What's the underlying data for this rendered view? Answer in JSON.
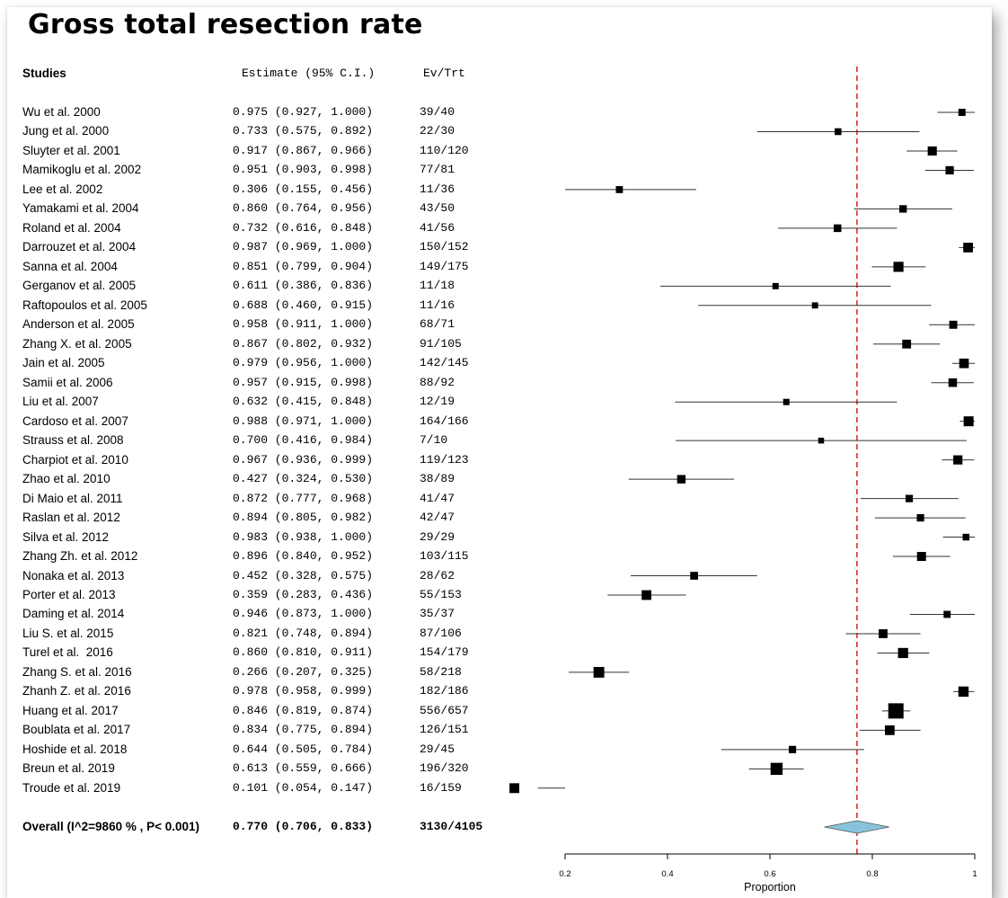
{
  "title": "Gross total resection rate",
  "headers": {
    "studies": "Studies",
    "estimate": "Estimate (95% C.I.)",
    "ev_trt": "Ev/Trt"
  },
  "chart_data": {
    "type": "forest",
    "xlabel": "Proportion",
    "xlim": [
      0.2,
      1.0
    ],
    "xticks": [
      "0.2",
      "0.4",
      "0.6",
      "0.8",
      "1"
    ],
    "xtick_values": [
      0.2,
      0.4,
      0.6,
      0.8,
      1.0
    ],
    "reference_line": 0.77,
    "reference_line_color": "#cc0000",
    "diamond_color": "#87c4dc",
    "studies": [
      {
        "name": "Wu et al. 2000",
        "est": 0.975,
        "lo": 0.927,
        "hi": 1.0,
        "ci": "0.975 (0.927, 1.000)",
        "evtrt": "39/40",
        "n": 40
      },
      {
        "name": "Jung et al. 2000",
        "est": 0.733,
        "lo": 0.575,
        "hi": 0.892,
        "ci": "0.733 (0.575, 0.892)",
        "evtrt": "22/30",
        "n": 30
      },
      {
        "name": "Sluyter et al. 2001",
        "est": 0.917,
        "lo": 0.867,
        "hi": 0.966,
        "ci": "0.917 (0.867, 0.966)",
        "evtrt": "110/120",
        "n": 120
      },
      {
        "name": "Mamikoglu et al. 2002",
        "est": 0.951,
        "lo": 0.903,
        "hi": 0.998,
        "ci": "0.951 (0.903, 0.998)",
        "evtrt": "77/81",
        "n": 81
      },
      {
        "name": "Lee et al. 2002",
        "est": 0.306,
        "lo": 0.155,
        "hi": 0.456,
        "ci": "0.306 (0.155, 0.456)",
        "evtrt": "11/36",
        "n": 36
      },
      {
        "name": "Yamakami et al. 2004",
        "est": 0.86,
        "lo": 0.764,
        "hi": 0.956,
        "ci": "0.860 (0.764, 0.956)",
        "evtrt": "43/50",
        "n": 50
      },
      {
        "name": "Roland et al. 2004",
        "est": 0.732,
        "lo": 0.616,
        "hi": 0.848,
        "ci": "0.732 (0.616, 0.848)",
        "evtrt": "41/56",
        "n": 56
      },
      {
        "name": "Darrouzet et al. 2004",
        "est": 0.987,
        "lo": 0.969,
        "hi": 1.0,
        "ci": "0.987 (0.969, 1.000)",
        "evtrt": "150/152",
        "n": 152
      },
      {
        "name": "Sanna et al. 2004",
        "est": 0.851,
        "lo": 0.799,
        "hi": 0.904,
        "ci": "0.851 (0.799, 0.904)",
        "evtrt": "149/175",
        "n": 175
      },
      {
        "name": "Gerganov et al. 2005",
        "est": 0.611,
        "lo": 0.386,
        "hi": 0.836,
        "ci": "0.611 (0.386, 0.836)",
        "evtrt": "11/18",
        "n": 18
      },
      {
        "name": "Raftopoulos et al. 2005",
        "est": 0.688,
        "lo": 0.46,
        "hi": 0.915,
        "ci": "0.688 (0.460, 0.915)",
        "evtrt": "11/16",
        "n": 16
      },
      {
        "name": "Anderson et al. 2005",
        "est": 0.958,
        "lo": 0.911,
        "hi": 1.0,
        "ci": "0.958 (0.911, 1.000)",
        "evtrt": "68/71",
        "n": 71
      },
      {
        "name": "Zhang X. et al. 2005",
        "est": 0.867,
        "lo": 0.802,
        "hi": 0.932,
        "ci": "0.867 (0.802, 0.932)",
        "evtrt": "91/105",
        "n": 105
      },
      {
        "name": "Jain et al. 2005",
        "est": 0.979,
        "lo": 0.956,
        "hi": 1.0,
        "ci": "0.979 (0.956, 1.000)",
        "evtrt": "142/145",
        "n": 145
      },
      {
        "name": "Samii et al. 2006",
        "est": 0.957,
        "lo": 0.915,
        "hi": 0.998,
        "ci": "0.957 (0.915, 0.998)",
        "evtrt": "88/92",
        "n": 92
      },
      {
        "name": "Liu et al. 2007",
        "est": 0.632,
        "lo": 0.415,
        "hi": 0.848,
        "ci": "0.632 (0.415, 0.848)",
        "evtrt": "12/19",
        "n": 19
      },
      {
        "name": "Cardoso et al. 2007",
        "est": 0.988,
        "lo": 0.971,
        "hi": 1.0,
        "ci": "0.988 (0.971, 1.000)",
        "evtrt": "164/166",
        "n": 166
      },
      {
        "name": "Strauss et al. 2008",
        "est": 0.7,
        "lo": 0.416,
        "hi": 0.984,
        "ci": "0.700 (0.416, 0.984)",
        "evtrt": "7/10",
        "n": 10
      },
      {
        "name": "Charpiot et al. 2010",
        "est": 0.967,
        "lo": 0.936,
        "hi": 0.999,
        "ci": "0.967 (0.936, 0.999)",
        "evtrt": "119/123",
        "n": 123
      },
      {
        "name": "Zhao et al. 2010",
        "est": 0.427,
        "lo": 0.324,
        "hi": 0.53,
        "ci": "0.427 (0.324, 0.530)",
        "evtrt": "38/89",
        "n": 89
      },
      {
        "name": "Di Maio et al. 2011",
        "est": 0.872,
        "lo": 0.777,
        "hi": 0.968,
        "ci": "0.872 (0.777, 0.968)",
        "evtrt": "41/47",
        "n": 47
      },
      {
        "name": "Raslan et al. 2012",
        "est": 0.894,
        "lo": 0.805,
        "hi": 0.982,
        "ci": "0.894 (0.805, 0.982)",
        "evtrt": "42/47",
        "n": 47
      },
      {
        "name": "Silva et al. 2012",
        "est": 0.983,
        "lo": 0.938,
        "hi": 1.0,
        "ci": "0.983 (0.938, 1.000)",
        "evtrt": "29/29",
        "n": 29
      },
      {
        "name": "Zhang Zh. et al. 2012",
        "est": 0.896,
        "lo": 0.84,
        "hi": 0.952,
        "ci": "0.896 (0.840, 0.952)",
        "evtrt": "103/115",
        "n": 115
      },
      {
        "name": "Nonaka et al. 2013",
        "est": 0.452,
        "lo": 0.328,
        "hi": 0.575,
        "ci": "0.452 (0.328, 0.575)",
        "evtrt": "28/62",
        "n": 62
      },
      {
        "name": "Porter et al. 2013",
        "est": 0.359,
        "lo": 0.283,
        "hi": 0.436,
        "ci": "0.359 (0.283, 0.436)",
        "evtrt": "55/153",
        "n": 153
      },
      {
        "name": "Daming et al. 2014",
        "est": 0.946,
        "lo": 0.873,
        "hi": 1.0,
        "ci": "0.946 (0.873, 1.000)",
        "evtrt": "35/37",
        "n": 37
      },
      {
        "name": "Liu S. et al. 2015",
        "est": 0.821,
        "lo": 0.748,
        "hi": 0.894,
        "ci": "0.821 (0.748, 0.894)",
        "evtrt": "87/106",
        "n": 106
      },
      {
        "name": "Turel et al.  2016",
        "est": 0.86,
        "lo": 0.81,
        "hi": 0.911,
        "ci": "0.860 (0.810, 0.911)",
        "evtrt": "154/179",
        "n": 179
      },
      {
        "name": "Zhang S. et al. 2016",
        "est": 0.266,
        "lo": 0.207,
        "hi": 0.325,
        "ci": "0.266 (0.207, 0.325)",
        "evtrt": "58/218",
        "n": 218
      },
      {
        "name": "Zhanh Z. et al. 2016",
        "est": 0.978,
        "lo": 0.958,
        "hi": 0.999,
        "ci": "0.978 (0.958, 0.999)",
        "evtrt": "182/186",
        "n": 186
      },
      {
        "name": "Huang et al. 2017",
        "est": 0.846,
        "lo": 0.819,
        "hi": 0.874,
        "ci": "0.846 (0.819, 0.874)",
        "evtrt": "556/657",
        "n": 657
      },
      {
        "name": "Boublata et al. 2017",
        "est": 0.834,
        "lo": 0.775,
        "hi": 0.894,
        "ci": "0.834 (0.775, 0.894)",
        "evtrt": "126/151",
        "n": 151
      },
      {
        "name": "Hoshide et al. 2018",
        "est": 0.644,
        "lo": 0.505,
        "hi": 0.784,
        "ci": "0.644 (0.505, 0.784)",
        "evtrt": "29/45",
        "n": 45
      },
      {
        "name": "Breun et al. 2019",
        "est": 0.613,
        "lo": 0.559,
        "hi": 0.666,
        "ci": "0.613 (0.559, 0.666)",
        "evtrt": "196/320",
        "n": 320
      },
      {
        "name": "Troude et al. 2019",
        "est": 0.101,
        "lo": 0.054,
        "hi": 0.147,
        "ci": "0.101 (0.054, 0.147)",
        "evtrt": "16/159",
        "n": 159
      }
    ],
    "overall": {
      "name": "Overall (I^2=9860 % , P< 0.001)",
      "est": 0.77,
      "lo": 0.706,
      "hi": 0.833,
      "ci": "0.770 (0.706, 0.833)",
      "evtrt": "3130/4105"
    }
  }
}
